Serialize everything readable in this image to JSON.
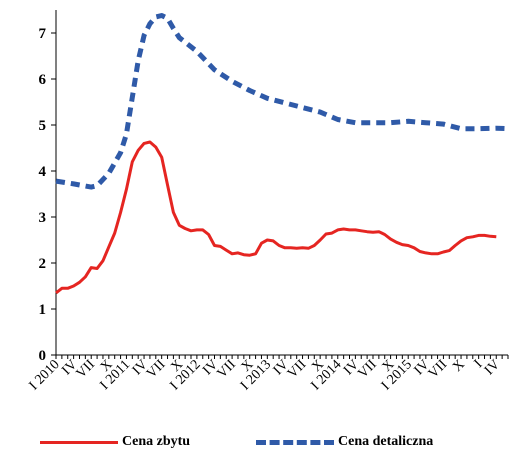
{
  "chart_data": {
    "type": "line",
    "title": "",
    "xlabel": "",
    "ylabel": "",
    "ylim": [
      0,
      7.5
    ],
    "yticks": [
      0,
      1,
      2,
      3,
      4,
      5,
      6,
      7
    ],
    "grid": false,
    "legend_position": "bottom",
    "xtick_labels": [
      "I 2010",
      "IV",
      "VII",
      "X",
      "I 2011",
      "IV",
      "VII",
      "X",
      "I 2012",
      "IV",
      "VII",
      "X",
      "I 2013",
      "IV",
      "VII",
      "X",
      "I 2014",
      "IV",
      "VII",
      "X",
      "I 2015",
      "IV",
      "VII",
      "X",
      "I",
      "IV"
    ],
    "xtick_months": [
      0,
      3,
      6,
      9,
      12,
      15,
      18,
      21,
      24,
      27,
      30,
      33,
      36,
      39,
      42,
      45,
      48,
      51,
      54,
      57,
      60,
      63,
      66,
      69,
      72,
      75
    ],
    "x_max_month": 77,
    "series": [
      {
        "name": "Cena zbytu",
        "color": "#e52521",
        "style": "solid",
        "points": [
          [
            0,
            1.35
          ],
          [
            1,
            1.45
          ],
          [
            2,
            1.45
          ],
          [
            3,
            1.5
          ],
          [
            4,
            1.58
          ],
          [
            5,
            1.7
          ],
          [
            6,
            1.9
          ],
          [
            7,
            1.88
          ],
          [
            8,
            2.05
          ],
          [
            9,
            2.35
          ],
          [
            10,
            2.65
          ],
          [
            11,
            3.1
          ],
          [
            12,
            3.6
          ],
          [
            13,
            4.2
          ],
          [
            14,
            4.45
          ],
          [
            15,
            4.6
          ],
          [
            16,
            4.63
          ],
          [
            17,
            4.52
          ],
          [
            18,
            4.3
          ],
          [
            19,
            3.7
          ],
          [
            20,
            3.1
          ],
          [
            21,
            2.82
          ],
          [
            22,
            2.75
          ],
          [
            23,
            2.7
          ],
          [
            24,
            2.72
          ],
          [
            25,
            2.72
          ],
          [
            26,
            2.62
          ],
          [
            27,
            2.38
          ],
          [
            28,
            2.36
          ],
          [
            29,
            2.28
          ],
          [
            30,
            2.2
          ],
          [
            31,
            2.22
          ],
          [
            32,
            2.18
          ],
          [
            33,
            2.17
          ],
          [
            34,
            2.2
          ],
          [
            35,
            2.43
          ],
          [
            36,
            2.5
          ],
          [
            37,
            2.48
          ],
          [
            38,
            2.38
          ],
          [
            39,
            2.33
          ],
          [
            40,
            2.33
          ],
          [
            41,
            2.32
          ],
          [
            42,
            2.33
          ],
          [
            43,
            2.32
          ],
          [
            44,
            2.38
          ],
          [
            45,
            2.5
          ],
          [
            46,
            2.63
          ],
          [
            47,
            2.65
          ],
          [
            48,
            2.72
          ],
          [
            49,
            2.74
          ],
          [
            50,
            2.72
          ],
          [
            51,
            2.72
          ],
          [
            52,
            2.7
          ],
          [
            53,
            2.68
          ],
          [
            54,
            2.67
          ],
          [
            55,
            2.68
          ],
          [
            56,
            2.62
          ],
          [
            57,
            2.52
          ],
          [
            58,
            2.45
          ],
          [
            59,
            2.4
          ],
          [
            60,
            2.38
          ],
          [
            61,
            2.33
          ],
          [
            62,
            2.25
          ],
          [
            63,
            2.22
          ],
          [
            64,
            2.2
          ],
          [
            65,
            2.2
          ],
          [
            66,
            2.24
          ],
          [
            67,
            2.27
          ],
          [
            68,
            2.38
          ],
          [
            69,
            2.48
          ],
          [
            70,
            2.55
          ],
          [
            71,
            2.57
          ],
          [
            72,
            2.6
          ],
          [
            73,
            2.6
          ],
          [
            74,
            2.58
          ],
          [
            75,
            2.57
          ]
        ]
      },
      {
        "name": "Cena detaliczna",
        "color": "#2f5aa8",
        "style": "dashed",
        "points": [
          [
            0,
            3.78
          ],
          [
            3,
            3.72
          ],
          [
            6,
            3.65
          ],
          [
            7,
            3.68
          ],
          [
            9,
            3.95
          ],
          [
            11,
            4.4
          ],
          [
            12,
            4.8
          ],
          [
            13,
            5.6
          ],
          [
            14,
            6.4
          ],
          [
            15,
            6.95
          ],
          [
            16,
            7.2
          ],
          [
            17,
            7.35
          ],
          [
            18,
            7.38
          ],
          [
            19,
            7.32
          ],
          [
            20,
            7.1
          ],
          [
            21,
            6.9
          ],
          [
            24,
            6.6
          ],
          [
            27,
            6.2
          ],
          [
            30,
            5.95
          ],
          [
            33,
            5.75
          ],
          [
            36,
            5.58
          ],
          [
            39,
            5.48
          ],
          [
            42,
            5.38
          ],
          [
            45,
            5.28
          ],
          [
            48,
            5.12
          ],
          [
            51,
            5.05
          ],
          [
            54,
            5.05
          ],
          [
            57,
            5.05
          ],
          [
            60,
            5.08
          ],
          [
            63,
            5.05
          ],
          [
            66,
            5.02
          ],
          [
            69,
            4.92
          ],
          [
            72,
            4.92
          ],
          [
            75,
            4.93
          ],
          [
            77,
            4.92
          ]
        ]
      }
    ]
  }
}
